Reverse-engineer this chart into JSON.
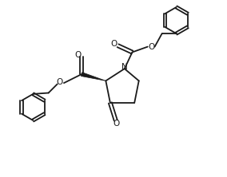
{
  "background_color": "#ffffff",
  "line_color": "#1a1a1a",
  "line_width": 1.3,
  "figsize": [
    2.84,
    2.22
  ],
  "dpi": 100,
  "xlim": [
    0,
    10
  ],
  "ylim": [
    0,
    8
  ]
}
